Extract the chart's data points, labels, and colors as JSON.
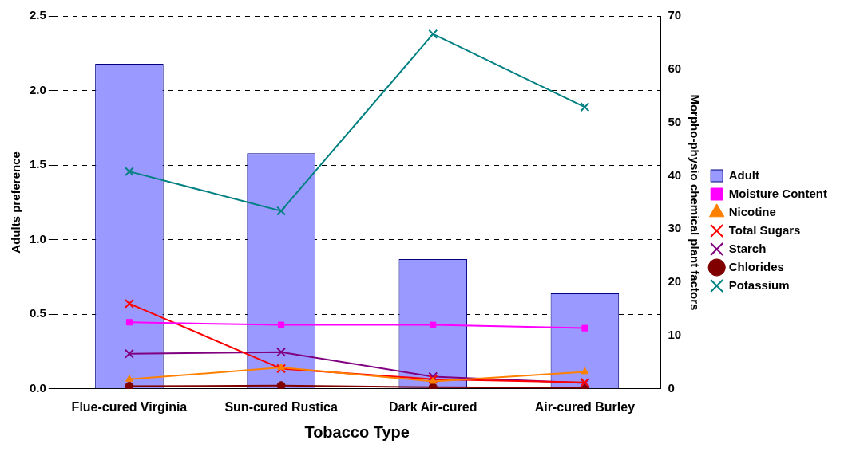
{
  "chart_data": {
    "type": "bar",
    "xlabel": "Tobacco Type",
    "ylabel": "Adults preference",
    "y2label": "Morpho-physio chemical plant factors",
    "categories": [
      "Flue-cured Virginia",
      "Sun-cured Rustica",
      "Dark Air-cured",
      "Air-cured Burley"
    ],
    "series": [
      {
        "name": "Adult",
        "color": "#9999ff",
        "values": [
          2.18,
          1.58,
          0.87,
          0.64
        ]
      },
      {
        "name": "Moisture Content",
        "type": "line",
        "axis": "y2",
        "marker": "square",
        "color": "#ff00ff",
        "values": [
          12.5,
          12.0,
          12.0,
          11.4
        ]
      },
      {
        "name": "Nicotine",
        "type": "line",
        "axis": "y2",
        "marker": "triangle",
        "color": "#ff8000",
        "values": [
          1.8,
          4.0,
          1.4,
          3.2
        ]
      },
      {
        "name": "Total Sugars",
        "type": "line",
        "axis": "y2",
        "marker": "cross",
        "color": "#ff0000",
        "values": [
          16.0,
          3.8,
          1.8,
          1.2
        ]
      },
      {
        "name": "Starch",
        "type": "line",
        "axis": "y2",
        "marker": "cross",
        "color": "#800080",
        "values": [
          6.6,
          6.9,
          2.3,
          1.1
        ]
      },
      {
        "name": "Chlorides",
        "type": "line",
        "axis": "y2",
        "marker": "circle",
        "color": "#800000",
        "values": [
          0.5,
          0.6,
          0.3,
          0.2
        ]
      },
      {
        "name": "Potassium",
        "type": "line",
        "axis": "y2",
        "marker": "cross",
        "color": "#008080",
        "values": [
          40.8,
          33.4,
          66.6,
          52.9
        ]
      }
    ],
    "ylim": [
      0,
      2.5
    ],
    "yticks": [
      {
        "value": 0,
        "label": "0.0"
      },
      {
        "value": 0.5,
        "label": "0.5"
      },
      {
        "value": 1,
        "label": "1.0"
      },
      {
        "value": 1.5,
        "label": "1.5"
      },
      {
        "value": 2,
        "label": "2.0"
      },
      {
        "value": 2.5,
        "label": "2.5"
      }
    ],
    "y2lim": [
      0,
      70
    ],
    "y2ticks": [
      0,
      10,
      20,
      30,
      40,
      50,
      60,
      70
    ],
    "grid": "y",
    "legend": "right"
  }
}
